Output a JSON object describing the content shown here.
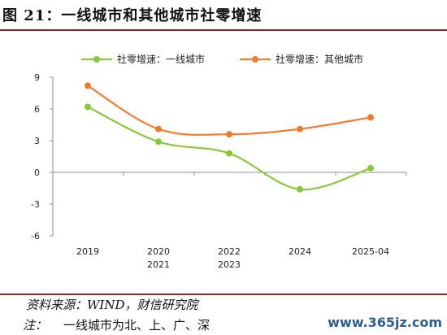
{
  "figure": {
    "title": "图 21：一线城市和其他城市社零增速",
    "source": "资料来源：WIND，财信研究院",
    "note_label": "注：",
    "note_text": "一线城市为北、上、广、深",
    "watermark": "www.365jz.com"
  },
  "chart_data": {
    "type": "line",
    "title": "",
    "xlabel": "",
    "ylabel": "",
    "categories": [
      "2019",
      "2020\n2021",
      "2022\n2023",
      "2024",
      "2025-04"
    ],
    "x_tick_lines": [
      [
        "2019"
      ],
      [
        "2020",
        "2021"
      ],
      [
        "2022",
        "2023"
      ],
      [
        "2024"
      ],
      [
        "2025-04"
      ]
    ],
    "ylim": [
      -6,
      9
    ],
    "yticks": [
      9,
      6,
      3,
      0,
      -3,
      -6
    ],
    "grid": false,
    "legend_position": "top",
    "smooth": true,
    "series": [
      {
        "name": "社零增速：一线城市",
        "color": "#8cc63f",
        "values": [
          6.2,
          2.9,
          1.8,
          -1.6,
          0.4
        ]
      },
      {
        "name": "社零增速：其他城市",
        "color": "#ed7d31",
        "values": [
          8.2,
          4.1,
          3.6,
          4.1,
          5.2
        ]
      }
    ]
  }
}
